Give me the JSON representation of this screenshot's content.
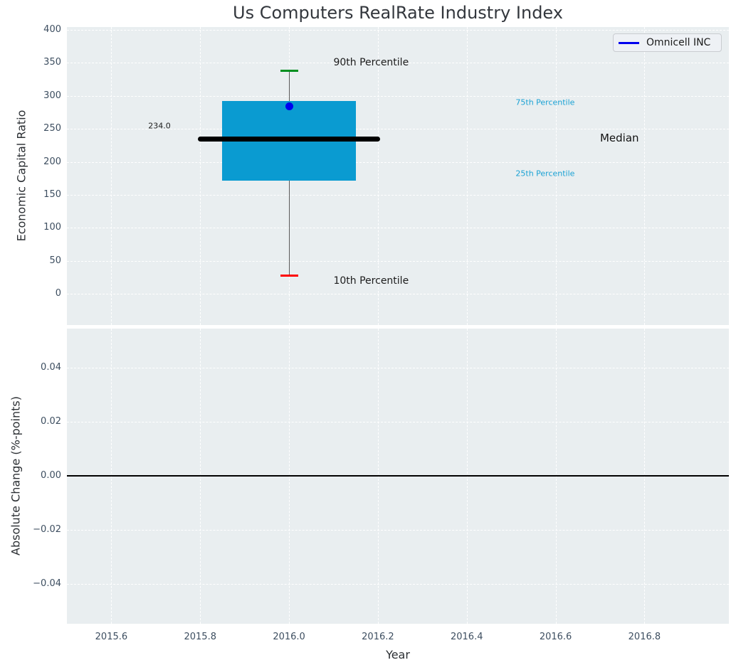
{
  "title": "Us Computers RealRate Industry Index",
  "axes": {
    "top": {
      "ylabel": "Economic Capital Ratio"
    },
    "bottom": {
      "ylabel": "Absolute Change (%-points)"
    },
    "xlabel": "Year"
  },
  "legend": {
    "label": "Omnicell INC",
    "line_color": "#0000ee"
  },
  "colors": {
    "panel_background": "#e9eef0",
    "grid": "#ffffff",
    "box_fill": "#0a9bd1",
    "median_line": "#000000",
    "whisker": "#5a5a5a",
    "cap_90th": "#008f1f",
    "cap_10th": "#ff0000",
    "omnicell_point": "#0000ee",
    "percentile_label": "#1ba2d4",
    "tick_label": "#3d4e60",
    "zero_line": "#000000"
  },
  "chart_data": [
    {
      "type": "boxplot",
      "title": "Us Computers RealRate Industry Index",
      "xlabel": "Year",
      "ylabel": "Economic Capital Ratio",
      "xlim": [
        2015.5,
        2016.99
      ],
      "ylim": [
        -47,
        404
      ],
      "grid": true,
      "grid_style": "white dashed",
      "legend": {
        "entries": [
          "Omnicell INC"
        ],
        "position": "upper right"
      },
      "x_ticks": {
        "values": [
          2015.6,
          2015.8,
          2016.0,
          2016.2,
          2016.4,
          2016.6,
          2016.8
        ],
        "labels": [
          "2015.6",
          "2015.8",
          "2016.0",
          "2016.2",
          "2016.4",
          "2016.6",
          "2016.8"
        ]
      },
      "y_ticks": {
        "values": [
          0,
          50,
          100,
          150,
          200,
          250,
          300,
          350,
          400
        ],
        "labels": [
          "0",
          "50",
          "100",
          "150",
          "200",
          "250",
          "300",
          "350",
          "400"
        ]
      },
      "box": {
        "x": 2016.0,
        "p10": 28,
        "p25": 171,
        "median": 234.0,
        "p75": 292,
        "p90": 338,
        "median_label": "234.0",
        "box_half_width": 0.15,
        "median_half_width": 0.205,
        "cap_half_width": 0.02
      },
      "points": [
        {
          "name": "Omnicell INC",
          "x": 2016.0,
          "y": 284,
          "color": "#0000ee"
        }
      ],
      "annotations": [
        {
          "text": "90th Percentile",
          "x": 2016.1,
          "y": 350,
          "size": 14,
          "color": "#1c1c1c"
        },
        {
          "text": "10th Percentile",
          "x": 2016.1,
          "y": 20,
          "size": 14,
          "color": "#1c1c1c"
        },
        {
          "text": "75th Percentile",
          "x": 2016.51,
          "y": 290,
          "size": 11,
          "color": "#1ba2d4"
        },
        {
          "text": "25th Percentile",
          "x": 2016.51,
          "y": 182,
          "size": 11,
          "color": "#1ba2d4"
        },
        {
          "text": "Median",
          "x": 2016.7,
          "y": 236,
          "size": 15,
          "color": "#111111"
        },
        {
          "text": "234.0",
          "x": 2015.683,
          "y": 254,
          "size": 11,
          "color": "#1c1c1c"
        }
      ]
    },
    {
      "type": "line",
      "xlabel": "Year",
      "ylabel": "Absolute Change (%-points)",
      "xlim": [
        2015.5,
        2016.99
      ],
      "ylim": [
        -0.0547,
        0.0545
      ],
      "grid": true,
      "zero_line": 0.0,
      "series": [],
      "x_ticks": {
        "values": [
          2015.6,
          2015.8,
          2016.0,
          2016.2,
          2016.4,
          2016.6,
          2016.8
        ],
        "labels": [
          "2015.6",
          "2015.8",
          "2016.0",
          "2016.2",
          "2016.4",
          "2016.6",
          "2016.8"
        ]
      },
      "y_ticks": {
        "values": [
          0.04,
          0.02,
          0.0,
          -0.02,
          -0.04
        ],
        "labels": [
          "0.04",
          "0.02",
          "0.00",
          "−0.02",
          "−0.04"
        ]
      }
    }
  ]
}
